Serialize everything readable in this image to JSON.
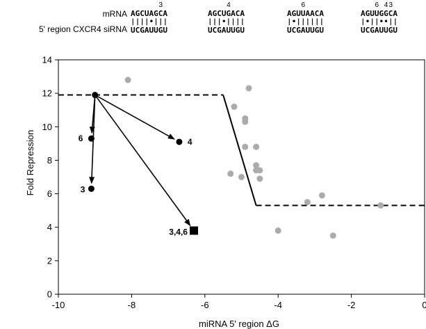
{
  "header": {
    "mrna_label": "mRNA",
    "sirna_label": "5' region CXCR4 siRNA",
    "alignments": [
      {
        "positions": [
          "3"
        ],
        "position_index": [
          6
        ],
        "mrna": "AGCUAGCA",
        "sirna": "UCGAUUGU",
        "bonds": [
          "|",
          "|",
          "|",
          "|",
          "•",
          "|",
          "|",
          "|"
        ]
      },
      {
        "positions": [
          "4"
        ],
        "position_index": [
          4
        ],
        "mrna": "AGCUGACA",
        "sirna": "UCGAUUGU",
        "bonds": [
          "|",
          "|",
          "|",
          "•",
          "|",
          "|",
          "|",
          "|"
        ]
      },
      {
        "positions": [
          "6"
        ],
        "position_index": [
          3
        ],
        "mrna": "AGUUAACA",
        "sirna": "UCGAUUGU",
        "bonds": [
          "|",
          "•",
          "|",
          "|",
          "|",
          "|",
          "|",
          "|"
        ]
      },
      {
        "positions": [
          "6",
          "4",
          "3"
        ],
        "position_index": [
          3,
          5,
          6
        ],
        "mrna": "AGUUGGCA",
        "sirna": "UCGAUUGU",
        "bonds": [
          "|",
          "•",
          "|",
          "|",
          "•",
          "•",
          "|",
          "|"
        ]
      }
    ]
  },
  "chart_data": {
    "type": "scatter",
    "xlabel": "miRNA 5' region ΔG",
    "ylabel": "Fold Repression",
    "xlim": [
      -10,
      0
    ],
    "ylim": [
      0,
      14
    ],
    "xticks": [
      -10,
      -8,
      -6,
      -4,
      -2,
      0
    ],
    "yticks": [
      0,
      2,
      4,
      6,
      8,
      10,
      12,
      14
    ],
    "grid": false,
    "gray_points": [
      [
        -8.1,
        12.8
      ],
      [
        -4.8,
        12.3
      ],
      [
        -5.2,
        11.2
      ],
      [
        -4.9,
        10.5
      ],
      [
        -4.9,
        10.3
      ],
      [
        -4.9,
        8.8
      ],
      [
        -4.6,
        8.8
      ],
      [
        -4.6,
        7.7
      ],
      [
        -4.6,
        7.4
      ],
      [
        -4.5,
        7.4
      ],
      [
        -5.0,
        7.0
      ],
      [
        -5.3,
        7.2
      ],
      [
        -4.5,
        6.9
      ],
      [
        -2.8,
        5.9
      ],
      [
        -3.2,
        5.5
      ],
      [
        -1.2,
        5.3
      ],
      [
        -4.0,
        3.8
      ],
      [
        -2.5,
        3.5
      ]
    ],
    "threshold_curve": {
      "style": "piecewise",
      "points": [
        [
          -10,
          11.9
        ],
        [
          -5.5,
          11.9
        ],
        [
          -4.6,
          5.3
        ],
        [
          0,
          5.3
        ]
      ]
    },
    "origin_point": [
      -9.0,
      11.9
    ],
    "mutants": [
      {
        "label": "6",
        "x": -9.1,
        "y": 9.3,
        "marker": "circle"
      },
      {
        "label": "4",
        "x": -6.7,
        "y": 9.1,
        "marker": "circle"
      },
      {
        "label": "3",
        "x": -9.1,
        "y": 6.3,
        "marker": "circle"
      },
      {
        "label": "3,4,6",
        "x": -6.3,
        "y": 3.8,
        "marker": "square"
      }
    ]
  }
}
